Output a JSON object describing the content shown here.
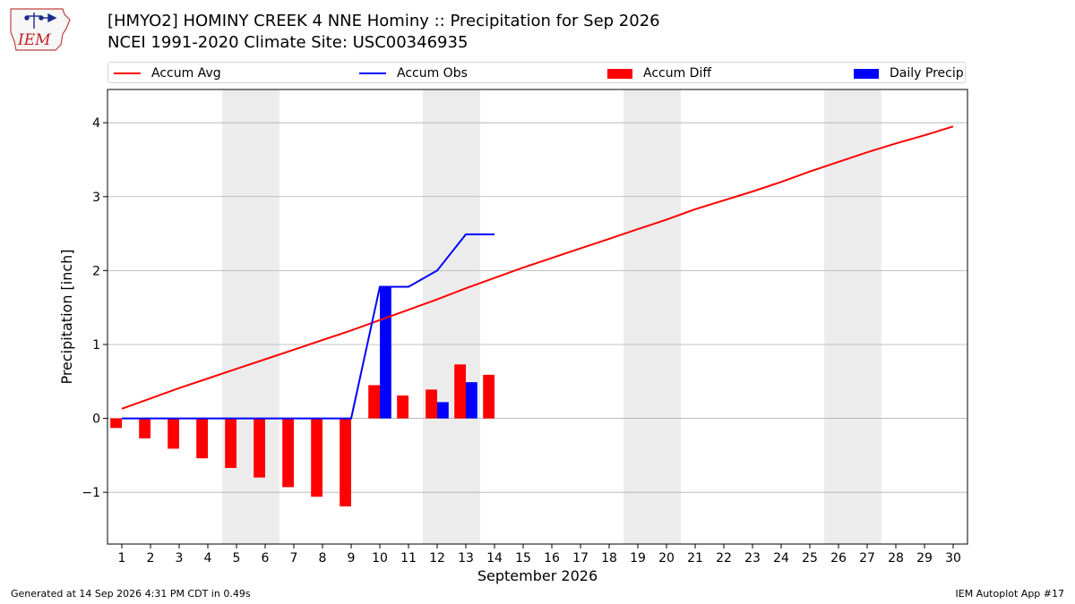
{
  "header": {
    "title_line1": "[HMYO2] HOMINY CREEK 4 NNE Hominy :: Precipitation for Sep 2026",
    "title_line2": "NCEI 1991-2020 Climate Site: USC00346935",
    "logo_text": "IEM"
  },
  "legend": {
    "items": [
      {
        "label": "Accum Avg",
        "color": "#ff0000",
        "kind": "line"
      },
      {
        "label": "Accum Obs",
        "color": "#0000ff",
        "kind": "line"
      },
      {
        "label": "Accum Diff",
        "color": "#ff0000",
        "kind": "bar"
      },
      {
        "label": "Daily Precip",
        "color": "#0000ff",
        "kind": "bar"
      }
    ]
  },
  "footer": {
    "generated": "Generated at 14 Sep 2026 4:31 PM CDT in 0.49s",
    "app": "IEM Autoplot App #17"
  },
  "chart_data": {
    "type": "bar",
    "xlabel": "September 2026",
    "ylabel": "Precipitation [inch]",
    "ylim": [
      -1.7,
      4.45
    ],
    "yticks": [
      -1,
      0,
      1,
      2,
      3,
      4
    ],
    "ytick_labels": [
      "−1",
      "0",
      "1",
      "2",
      "3",
      "4"
    ],
    "xlim": [
      0.5,
      30.5
    ],
    "days": [
      1,
      2,
      3,
      4,
      5,
      6,
      7,
      8,
      9,
      10,
      11,
      12,
      13,
      14,
      15,
      16,
      17,
      18,
      19,
      20,
      21,
      22,
      23,
      24,
      25,
      26,
      27,
      28,
      29,
      30
    ],
    "weekend_shading": [
      [
        4.5,
        6.5
      ],
      [
        11.5,
        13.5
      ],
      [
        18.5,
        20.5
      ],
      [
        25.5,
        27.5
      ]
    ],
    "grid": true,
    "colors": {
      "avg": "#ff0000",
      "obs": "#0000ff",
      "diff": "#ff0000",
      "daily": "#0000ff",
      "weekend": "#ececec"
    },
    "series": [
      {
        "name": "Accum Avg",
        "kind": "line",
        "x": [
          1,
          2,
          3,
          4,
          5,
          6,
          7,
          8,
          9,
          10,
          11,
          12,
          13,
          14,
          15,
          16,
          17,
          18,
          19,
          20,
          21,
          22,
          23,
          24,
          25,
          26,
          27,
          28,
          29,
          30
        ],
        "values": [
          0.13,
          0.27,
          0.41,
          0.54,
          0.67,
          0.8,
          0.93,
          1.06,
          1.19,
          1.33,
          1.47,
          1.61,
          1.76,
          1.9,
          2.04,
          2.17,
          2.3,
          2.43,
          2.56,
          2.69,
          2.83,
          2.95,
          3.07,
          3.2,
          3.34,
          3.47,
          3.6,
          3.72,
          3.83,
          3.95
        ]
      },
      {
        "name": "Accum Obs",
        "kind": "line",
        "x": [
          1,
          2,
          3,
          4,
          5,
          6,
          7,
          8,
          9,
          10,
          11,
          12,
          13,
          14
        ],
        "values": [
          0,
          0,
          0,
          0,
          0,
          0,
          0,
          0,
          0,
          1.78,
          1.78,
          2.0,
          2.49,
          2.49
        ]
      },
      {
        "name": "Accum Diff",
        "kind": "bar",
        "x": [
          1,
          2,
          3,
          4,
          5,
          6,
          7,
          8,
          9,
          10,
          11,
          12,
          13,
          14
        ],
        "values": [
          -0.13,
          -0.27,
          -0.41,
          -0.54,
          -0.67,
          -0.8,
          -0.93,
          -1.06,
          -1.19,
          0.45,
          0.31,
          0.39,
          0.73,
          0.59
        ]
      },
      {
        "name": "Daily Precip",
        "kind": "bar",
        "x": [
          1,
          2,
          3,
          4,
          5,
          6,
          7,
          8,
          9,
          10,
          11,
          12,
          13,
          14
        ],
        "values": [
          0,
          0,
          0,
          0,
          0,
          0,
          0,
          0,
          0,
          1.78,
          0,
          0.22,
          0.49,
          0
        ]
      }
    ]
  }
}
